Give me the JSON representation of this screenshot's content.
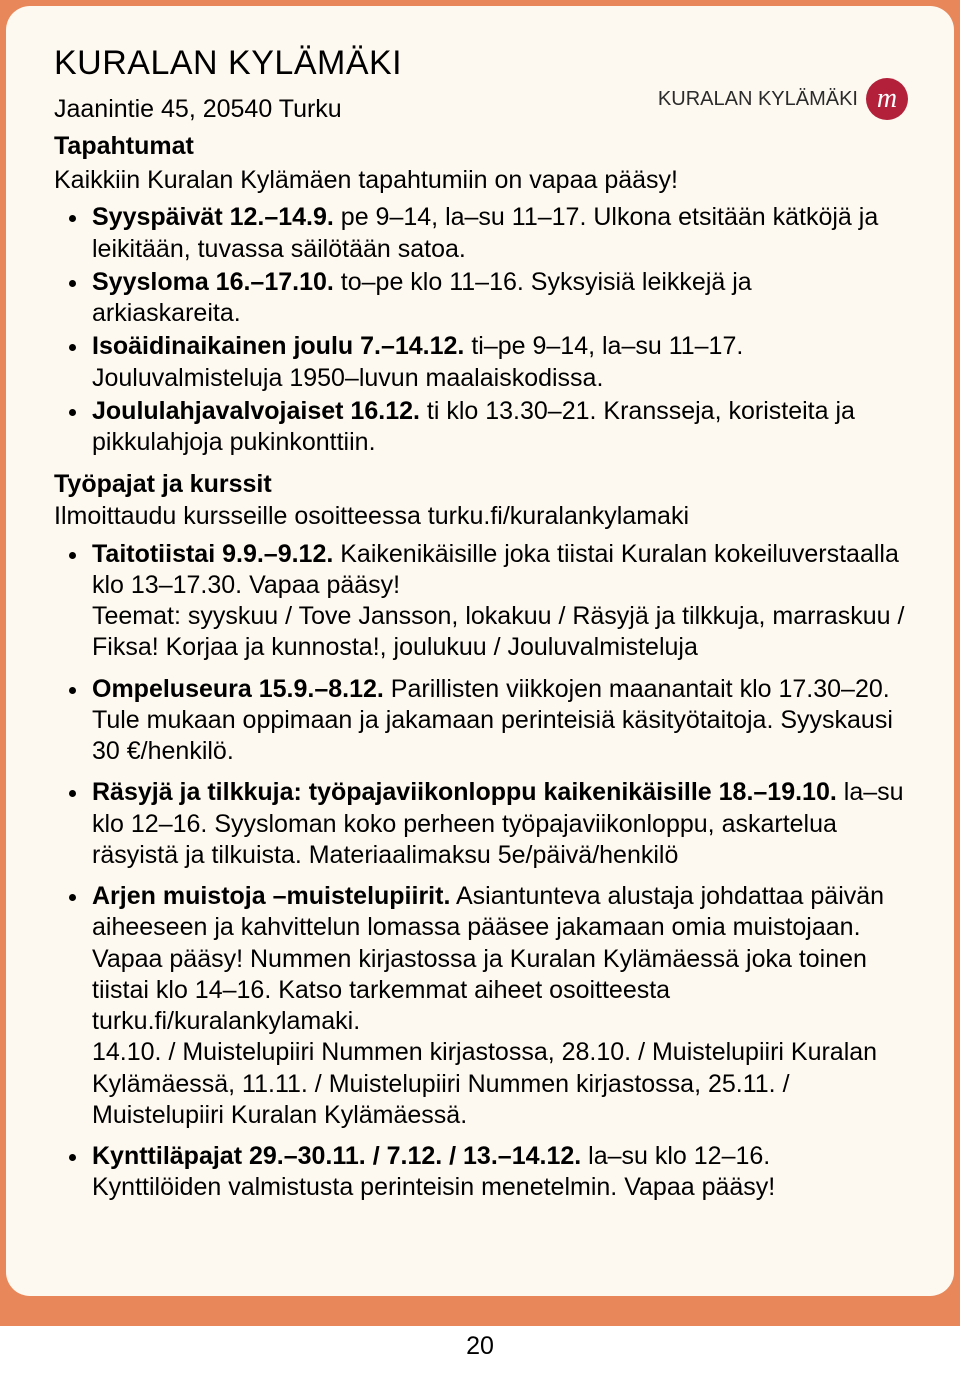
{
  "title": "KURALAN KYLÄMÄKI",
  "address": "Jaanintie 45, 20540 Turku",
  "logo": {
    "text": "KURALAN KYLÄMÄKI",
    "badge": "m"
  },
  "section1": {
    "heading": "Tapahtumat",
    "intro": "Kaikkiin Kuralan Kylämäen tapahtumiin on vapaa pääsy!",
    "items": [
      {
        "bold": "Syyspäivät 12.–14.9.",
        "rest": " pe 9–14, la–su 11–17. Ulkona etsitään kätköjä ja leikitään, tuvassa säilötään satoa."
      },
      {
        "bold": "Syysloma 16.–17.10.",
        "rest": " to–pe klo 11–16. Syksyisiä leikkejä ja arkiaskareita."
      },
      {
        "bold": "Isoäidinaikainen joulu 7.–14.12.",
        "rest": " ti–pe 9–14, la–su 11–17. Jouluvalmisteluja 1950–luvun maalaiskodissa."
      },
      {
        "bold": "Joululahjavalvojaiset 16.12.",
        "rest": " ti klo 13.30–21. Kransseja, koristeita ja pikkulahjoja pukinkonttiin."
      }
    ]
  },
  "section2": {
    "heading": "Työpajat ja kurssit",
    "intro": "Ilmoittaudu kursseille osoitteessa turku.fi/kuralankylamaki",
    "items": [
      {
        "bold": "Taitotiistai 9.9.–9.12.",
        "rest": " Kaikenikäisille joka tiistai Kuralan kokeiluverstaalla klo 13–17.30. Vapaa pääsy!",
        "extra": "Teemat: syyskuu / Tove Jansson, lokakuu / Räsyjä ja tilkkuja, marraskuu / Fiksa! Korjaa ja kunnosta!, joulukuu / Jouluvalmisteluja"
      },
      {
        "bold": "Ompeluseura 15.9.–8.12.",
        "rest": " Parillisten viikkojen maanantait klo 17.30–20. Tule mukaan oppimaan ja jakamaan perinteisiä käsityötaitoja. Syyskausi 30 €/henkilö."
      },
      {
        "bold": "Räsyjä ja tilkkuja: työpajaviikonloppu kaikenikäisille 18.–19.10.",
        "rest": " la–su klo 12–16. Syysloman koko perheen työpajaviikonloppu, askartelua räsyistä ja tilkuista. Materiaalimaksu 5e/päivä/henkilö"
      },
      {
        "bold": "Arjen muistoja –muistelupiirit.",
        "rest": " Asiantunteva alustaja johdattaa päivän aiheeseen ja kahvittelun lomassa pääsee jakamaan omia muistojaan. Vapaa pääsy! Nummen kirjastossa ja Kuralan Kylämäessä joka toinen tiistai klo 14–16. Katso tarkemmat aiheet osoitteesta turku.fi/kuralankylamaki.",
        "trail": " 14.10. / Muistelupiiri Nummen kirjastossa, 28.10. / Muistelupiiri Kuralan Kylämäessä, 11.11. / Muistelupiiri Nummen kirjastossa, 25.11. / Muistelupiiri Kuralan Kylämäessä."
      },
      {
        "bold": "Kynttiläpajat 29.–30.11. / 7.12. / 13.–14.12.",
        "rest": " la–su klo 12–16. Kynttilöiden valmistusta perinteisin menetelmin. Vapaa pääsy!"
      }
    ]
  },
  "page": "20",
  "colors": {
    "outer": "#e8875a",
    "panel_bg": "#fef9f0",
    "badge": "#b3203a"
  }
}
